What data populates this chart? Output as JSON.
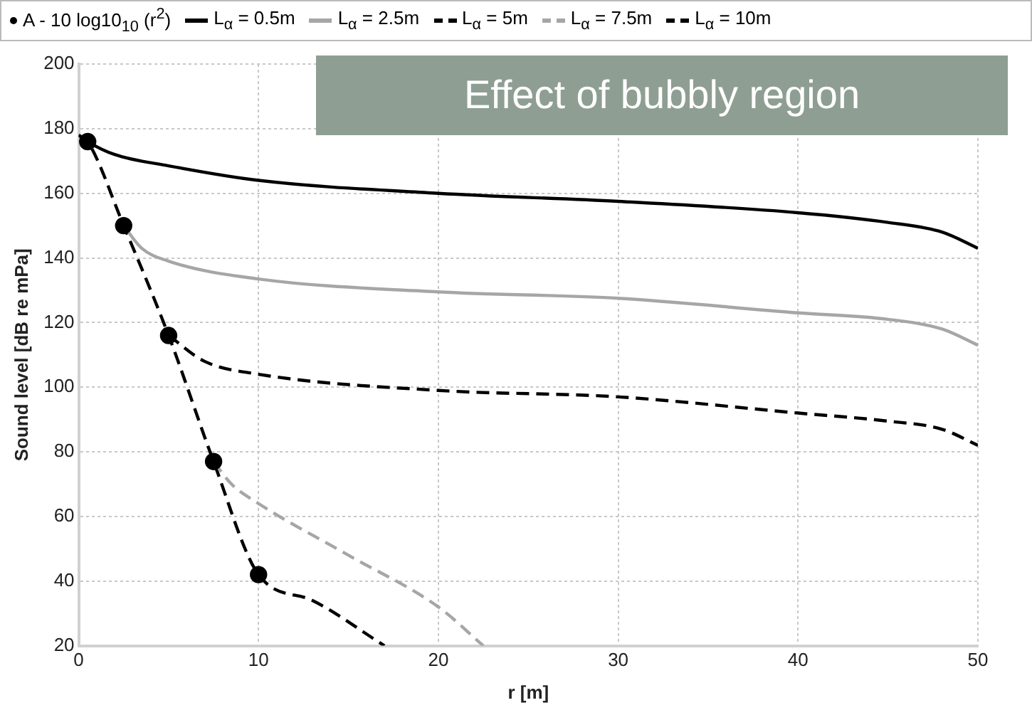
{
  "chart_data": {
    "type": "line",
    "title": "Effect of bubbly region",
    "xlabel": "r [m]",
    "ylabel": "Sound level [dB re mPa]",
    "xlim": [
      0,
      50
    ],
    "xticks": [
      0,
      10,
      20,
      30,
      40,
      50
    ],
    "ylim": [
      20,
      200
    ],
    "yticks": [
      20,
      40,
      60,
      80,
      100,
      120,
      140,
      160,
      180,
      200
    ],
    "grid": true,
    "legend": "top",
    "series": [
      {
        "name": "A - 10 log10$_{10}$ (r$^{2}$)",
        "type": "scatter",
        "marker": "circle",
        "color": "#000000",
        "x": [
          0.5,
          2.5,
          5,
          7.5,
          10
        ],
        "values": [
          176,
          150,
          116,
          77,
          42
        ]
      },
      {
        "name": "L$_{α}$ = 0.5m",
        "color": "#000000",
        "line_style": "solid",
        "x": [
          0,
          0.5,
          2,
          5,
          10,
          20,
          30,
          40,
          45,
          48,
          50
        ],
        "values": [
          178,
          176,
          172,
          168.5,
          164,
          160,
          157.5,
          154,
          151,
          148,
          143
        ]
      },
      {
        "name": "L$_{α}$ = 2.5m",
        "color": "#a6a6a6",
        "line_style": "solid",
        "x": [
          2.5,
          3.5,
          5,
          10,
          20,
          30,
          40,
          45,
          48,
          50
        ],
        "values": [
          150,
          143,
          139,
          133.5,
          129.5,
          127.5,
          123,
          121,
          118,
          113
        ]
      },
      {
        "name": "L$_{α}$ = 5m",
        "color": "#000000",
        "line_style": "dashed",
        "x": [
          5,
          7,
          10,
          20,
          30,
          40,
          45,
          48,
          50
        ],
        "values": [
          116,
          108,
          104,
          99,
          97,
          92,
          89.5,
          87,
          82
        ]
      },
      {
        "name": "L$_{α}$ = 7.5m",
        "color": "#a6a6a6",
        "line_style": "dashed",
        "x": [
          7.5,
          8.5,
          10,
          15,
          20,
          22.5
        ],
        "values": [
          77,
          70,
          64,
          48,
          32,
          20
        ]
      },
      {
        "name": "L$_{α}$ = 10m",
        "color": "#000000",
        "line_style": "dashed",
        "x": [
          0,
          0.5,
          2.5,
          5,
          7.5,
          10,
          13,
          17
        ],
        "values": [
          178,
          176,
          150,
          116,
          77,
          42,
          34,
          20
        ]
      }
    ]
  }
}
